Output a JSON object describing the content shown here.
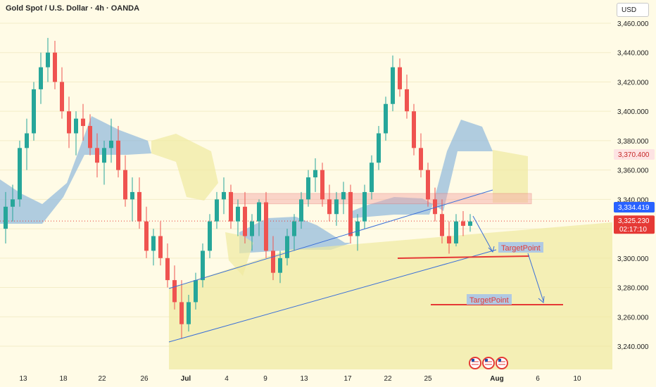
{
  "header": {
    "title": "Gold Spot / U.S. Dollar · 4h · OANDA",
    "currency": "USD"
  },
  "colors": {
    "background": "#fffbe6",
    "bull_candle": "#26a69a",
    "bear_candle": "#ef5350",
    "cloud_blue": "#8fb8dc",
    "cloud_yellow": "#f0e9a0",
    "resistance_zone": "#f4a5a5",
    "trendline": "#3a6fd8",
    "target_line": "#e53935",
    "price_tag_red": "#e53935",
    "price_tag_blue": "#2962ff",
    "zone_tag": "#fde3e3"
  },
  "chart_data": {
    "type": "candlestick",
    "symbol": "XAUUSD",
    "timeframe": "4h",
    "ylim": [
      3230,
      3470
    ],
    "y_ticks": [
      3240,
      3260,
      3280,
      3300,
      3320,
      3340,
      3360,
      3380,
      3400,
      3420,
      3440,
      3460
    ],
    "y_tick_labels": [
      "3,240.000",
      "3,260.000",
      "3,280.000",
      "3,300.000",
      "3,320.000",
      "3,340.000",
      "3,360.000",
      "3,380.000",
      "3,400.000",
      "3,420.000",
      "3,440.000",
      "3,460.000"
    ],
    "x_tick_labels": [
      "13",
      "18",
      "22",
      "26",
      "Jul",
      "4",
      "9",
      "13",
      "17",
      "22",
      "25",
      "Aug",
      "6",
      "10"
    ],
    "price_tags": [
      {
        "label": "3,370.400",
        "value": 3370.4,
        "style": "zone"
      },
      {
        "label": "3,334.419",
        "value": 3334.4,
        "style": "blue"
      },
      {
        "label": "3,325.230",
        "value": 3325.2,
        "style": "red",
        "sub": "02:17:10"
      }
    ],
    "current_price": 3325.23,
    "resistance_zone": [
      3337,
      3344
    ],
    "support_line": 3302,
    "target_points": [
      {
        "label": "TargetPoint",
        "value": 3303
      },
      {
        "label": "TargetPoint",
        "value": 3268
      }
    ],
    "candles": [
      [
        3320,
        3345,
        3310,
        3335
      ],
      [
        3335,
        3350,
        3325,
        3340
      ],
      [
        3340,
        3380,
        3335,
        3375
      ],
      [
        3375,
        3395,
        3360,
        3385
      ],
      [
        3385,
        3420,
        3380,
        3415
      ],
      [
        3415,
        3440,
        3405,
        3430
      ],
      [
        3430,
        3450,
        3420,
        3440
      ],
      [
        3440,
        3448,
        3415,
        3420
      ],
      [
        3420,
        3430,
        3395,
        3400
      ],
      [
        3400,
        3410,
        3375,
        3385
      ],
      [
        3385,
        3400,
        3370,
        3395
      ],
      [
        3395,
        3405,
        3380,
        3390
      ],
      [
        3390,
        3398,
        3370,
        3375
      ],
      [
        3375,
        3385,
        3355,
        3365
      ],
      [
        3365,
        3380,
        3350,
        3375
      ],
      [
        3375,
        3395,
        3365,
        3380
      ],
      [
        3380,
        3390,
        3355,
        3360
      ],
      [
        3360,
        3370,
        3335,
        3340
      ],
      [
        3340,
        3355,
        3325,
        3345
      ],
      [
        3345,
        3355,
        3320,
        3325
      ],
      [
        3325,
        3335,
        3300,
        3305
      ],
      [
        3305,
        3320,
        3295,
        3315
      ],
      [
        3315,
        3325,
        3295,
        3300
      ],
      [
        3300,
        3310,
        3280,
        3285
      ],
      [
        3285,
        3295,
        3265,
        3270
      ],
      [
        3270,
        3285,
        3245,
        3255
      ],
      [
        3255,
        3275,
        3250,
        3270
      ],
      [
        3270,
        3290,
        3265,
        3285
      ],
      [
        3285,
        3310,
        3280,
        3305
      ],
      [
        3305,
        3330,
        3300,
        3325
      ],
      [
        3325,
        3345,
        3320,
        3340
      ],
      [
        3340,
        3355,
        3330,
        3345
      ],
      [
        3345,
        3350,
        3320,
        3325
      ],
      [
        3325,
        3340,
        3315,
        3335
      ],
      [
        3335,
        3345,
        3310,
        3315
      ],
      [
        3315,
        3330,
        3305,
        3325
      ],
      [
        3325,
        3340,
        3315,
        3338
      ],
      [
        3338,
        3345,
        3300,
        3305
      ],
      [
        3305,
        3315,
        3285,
        3290
      ],
      [
        3290,
        3305,
        3283,
        3300
      ],
      [
        3300,
        3320,
        3295,
        3315
      ],
      [
        3315,
        3330,
        3305,
        3325
      ],
      [
        3325,
        3345,
        3320,
        3340
      ],
      [
        3340,
        3360,
        3335,
        3355
      ],
      [
        3355,
        3368,
        3345,
        3360
      ],
      [
        3360,
        3365,
        3335,
        3340
      ],
      [
        3340,
        3350,
        3325,
        3330
      ],
      [
        3330,
        3345,
        3322,
        3340
      ],
      [
        3340,
        3352,
        3330,
        3345
      ],
      [
        3345,
        3350,
        3310,
        3315
      ],
      [
        3315,
        3330,
        3305,
        3325
      ],
      [
        3325,
        3350,
        3320,
        3345
      ],
      [
        3345,
        3370,
        3340,
        3365
      ],
      [
        3365,
        3390,
        3360,
        3385
      ],
      [
        3385,
        3410,
        3380,
        3405
      ],
      [
        3405,
        3438,
        3400,
        3430
      ],
      [
        3430,
        3436,
        3410,
        3415
      ],
      [
        3415,
        3425,
        3395,
        3400
      ],
      [
        3400,
        3405,
        3370,
        3375
      ],
      [
        3375,
        3385,
        3355,
        3360
      ],
      [
        3360,
        3365,
        3335,
        3340
      ],
      [
        3340,
        3348,
        3325,
        3330
      ],
      [
        3330,
        3340,
        3310,
        3315
      ],
      [
        3315,
        3325,
        3303,
        3310
      ],
      [
        3310,
        3330,
        3308,
        3325
      ],
      [
        3325,
        3332,
        3315,
        3322
      ],
      [
        3322,
        3330,
        3318,
        3325
      ]
    ]
  },
  "footer": {
    "event_badges": [
      "US",
      "US",
      "US"
    ]
  }
}
